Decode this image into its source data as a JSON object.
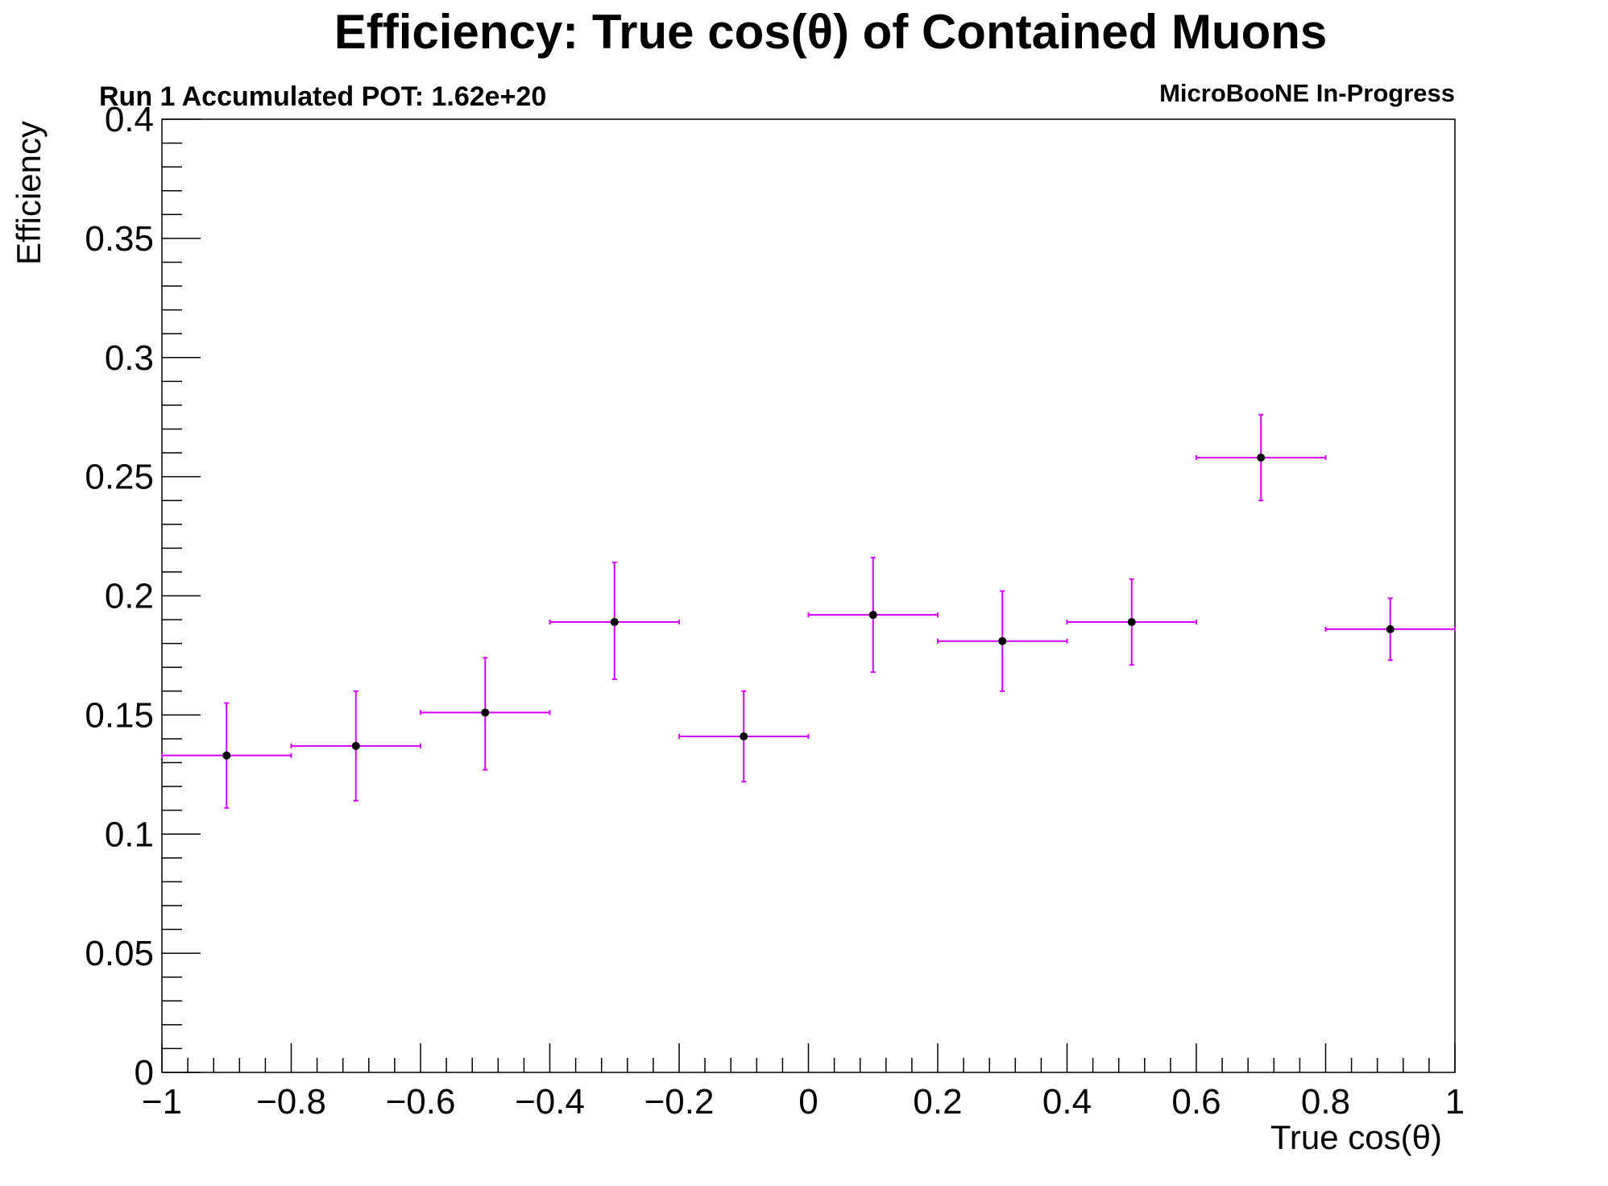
{
  "chart_data": {
    "type": "scatter",
    "title": "Efficiency: True cos(θ) of Contained Muons",
    "subtitle": "Run 1 Accumulated POT: 1.62e+20",
    "tag": "MicroBooNE In-Progress",
    "xlabel": "True cos(θ)",
    "ylabel": "Efficiency",
    "xlim": [
      -1,
      1
    ],
    "ylim": [
      0,
      0.4
    ],
    "x_ticks": [
      "−1",
      "−0.8",
      "−0.6",
      "−0.4",
      "−0.2",
      "0",
      "0.2",
      "0.4",
      "0.6",
      "0.8",
      "1"
    ],
    "x_tick_values": [
      -1,
      -0.8,
      -0.6,
      -0.4,
      -0.2,
      0,
      0.2,
      0.4,
      0.6,
      0.8,
      1
    ],
    "y_ticks": [
      "0",
      "0.05",
      "0.1",
      "0.15",
      "0.2",
      "0.25",
      "0.3",
      "0.35",
      "0.4"
    ],
    "y_tick_values": [
      0,
      0.05,
      0.1,
      0.15,
      0.2,
      0.25,
      0.3,
      0.35,
      0.4
    ],
    "grid": false,
    "marker_color": "#000000",
    "error_bar_color": "#d400ff",
    "series": [
      {
        "points": [
          {
            "x": -0.9,
            "y": 0.133,
            "x_err": 0.1,
            "y_low": 0.111,
            "y_high": 0.155
          },
          {
            "x": -0.7,
            "y": 0.137,
            "x_err": 0.1,
            "y_low": 0.114,
            "y_high": 0.16
          },
          {
            "x": -0.5,
            "y": 0.151,
            "x_err": 0.1,
            "y_low": 0.127,
            "y_high": 0.174
          },
          {
            "x": -0.3,
            "y": 0.189,
            "x_err": 0.1,
            "y_low": 0.165,
            "y_high": 0.214
          },
          {
            "x": -0.1,
            "y": 0.141,
            "x_err": 0.1,
            "y_low": 0.122,
            "y_high": 0.16
          },
          {
            "x": 0.1,
            "y": 0.192,
            "x_err": 0.1,
            "y_low": 0.168,
            "y_high": 0.216
          },
          {
            "x": 0.3,
            "y": 0.181,
            "x_err": 0.1,
            "y_low": 0.16,
            "y_high": 0.202
          },
          {
            "x": 0.5,
            "y": 0.189,
            "x_err": 0.1,
            "y_low": 0.171,
            "y_high": 0.207
          },
          {
            "x": 0.7,
            "y": 0.258,
            "x_err": 0.1,
            "y_low": 0.24,
            "y_high": 0.276
          },
          {
            "x": 0.9,
            "y": 0.186,
            "x_err": 0.1,
            "y_low": 0.173,
            "y_high": 0.199
          }
        ]
      }
    ]
  }
}
